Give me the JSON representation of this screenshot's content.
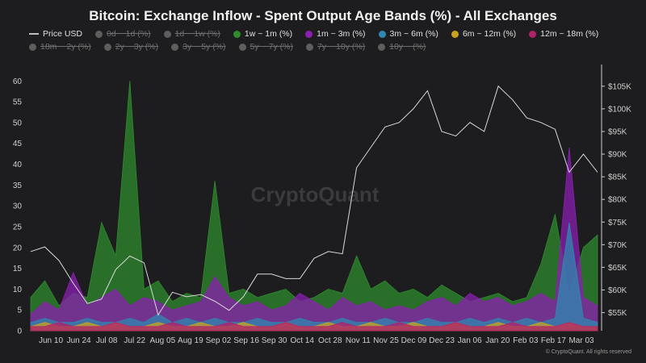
{
  "chart_data": {
    "type": "area",
    "title": "Bitcoin: Exchange Inflow - Spent Output Age Bands (%) - All Exchanges",
    "xlabel": "",
    "ylabel": "",
    "ylim": [
      0,
      62
    ],
    "y_ticks": [
      0,
      5,
      10,
      15,
      20,
      25,
      30,
      35,
      40,
      45,
      50,
      55,
      60
    ],
    "y2_ticks": [
      "$55K",
      "$60K",
      "$65K",
      "$70K",
      "$75K",
      "$80K",
      "$85K",
      "$90K",
      "$95K",
      "$100K",
      "$105K"
    ],
    "y2lim": [
      51000,
      108000
    ],
    "x_ticks": [
      "Jun 10",
      "Jun 24",
      "Jul 08",
      "Jul 22",
      "Aug 05",
      "Aug 19",
      "Sep 02",
      "Sep 16",
      "Sep 30",
      "Oct 14",
      "Oct 28",
      "Nov 11",
      "Nov 25",
      "Dec 09",
      "Dec 23",
      "Jan 06",
      "Jan 20",
      "Feb 03",
      "Feb 17",
      "Mar 03"
    ],
    "x": [
      "2024-06-03",
      "2024-06-10",
      "2024-06-17",
      "2024-06-24",
      "2024-07-01",
      "2024-07-08",
      "2024-07-15",
      "2024-07-22",
      "2024-07-29",
      "2024-08-05",
      "2024-08-12",
      "2024-08-19",
      "2024-08-26",
      "2024-09-02",
      "2024-09-09",
      "2024-09-16",
      "2024-09-23",
      "2024-09-30",
      "2024-10-07",
      "2024-10-14",
      "2024-10-21",
      "2024-10-28",
      "2024-11-04",
      "2024-11-11",
      "2024-11-18",
      "2024-11-25",
      "2024-12-02",
      "2024-12-09",
      "2024-12-16",
      "2024-12-23",
      "2024-12-30",
      "2025-01-06",
      "2025-01-13",
      "2025-01-20",
      "2025-01-27",
      "2025-02-03",
      "2025-02-10",
      "2025-02-17",
      "2025-02-24",
      "2025-03-03",
      "2025-03-08"
    ],
    "legend_placement": "top",
    "grid": false,
    "series": [
      {
        "name": "Price USD",
        "axis": "right",
        "style": "line",
        "color": "#d9d9d9",
        "active": true,
        "values": [
          68500,
          69500,
          66500,
          61500,
          57000,
          58000,
          64500,
          67500,
          66000,
          54500,
          59500,
          58500,
          59000,
          57500,
          55500,
          58500,
          63500,
          63500,
          62500,
          62500,
          67000,
          68500,
          68000,
          87000,
          91500,
          96000,
          97000,
          100000,
          104000,
          95000,
          94000,
          97000,
          95000,
          105000,
          102000,
          98000,
          97000,
          95500,
          86000,
          90000,
          86000
        ]
      },
      {
        "name": "0d ~ 1d (%)",
        "color": "#5e5e5e",
        "active": false
      },
      {
        "name": "1d ~ 1w (%)",
        "color": "#5e5e5e",
        "active": false
      },
      {
        "name": "1w ~ 1m (%)",
        "color": "#2e8b2e",
        "active": true,
        "values": [
          8,
          12,
          6,
          9,
          8,
          26,
          18,
          60,
          10,
          12,
          7,
          9,
          8,
          36,
          9,
          10,
          8,
          9,
          10,
          7,
          8,
          10,
          9,
          18,
          10,
          12,
          9,
          10,
          8,
          11,
          9,
          7,
          8,
          9,
          7,
          8,
          16,
          28,
          9,
          20,
          23
        ]
      },
      {
        "name": "1m ~ 3m (%)",
        "color": "#8a1fb0",
        "active": true,
        "values": [
          4,
          7,
          5,
          14,
          6,
          8,
          10,
          6,
          8,
          7,
          5,
          6,
          7,
          13,
          8,
          6,
          7,
          5,
          6,
          9,
          7,
          5,
          8,
          6,
          7,
          5,
          6,
          5,
          7,
          8,
          6,
          9,
          7,
          8,
          6,
          7,
          9,
          7,
          44,
          8,
          6
        ]
      },
      {
        "name": "3m ~ 6m (%)",
        "color": "#2f88b0",
        "active": true,
        "values": [
          2,
          3,
          2,
          2,
          3,
          2,
          2,
          3,
          2,
          4,
          2,
          3,
          2,
          3,
          2,
          2,
          3,
          2,
          2,
          3,
          2,
          2,
          3,
          2,
          2,
          3,
          2,
          2,
          3,
          2,
          2,
          3,
          2,
          3,
          2,
          3,
          2,
          3,
          26,
          3,
          2
        ]
      },
      {
        "name": "6m ~ 12m (%)",
        "color": "#c9a11f",
        "active": true,
        "values": [
          1,
          2,
          1,
          1,
          2,
          1,
          2,
          1,
          1,
          2,
          1,
          1,
          2,
          1,
          1,
          2,
          1,
          1,
          2,
          1,
          1,
          2,
          1,
          1,
          2,
          1,
          1,
          2,
          1,
          1,
          2,
          1,
          1,
          2,
          1,
          1,
          2,
          1,
          2,
          1,
          1
        ]
      },
      {
        "name": "12m ~ 18m (%)",
        "color": "#b3206a",
        "active": true,
        "values": [
          1,
          1,
          2,
          1,
          1,
          1,
          2,
          1,
          1,
          1,
          2,
          1,
          1,
          1,
          2,
          1,
          1,
          1,
          2,
          1,
          1,
          1,
          2,
          1,
          1,
          1,
          2,
          1,
          1,
          1,
          2,
          1,
          1,
          1,
          2,
          1,
          1,
          1,
          2,
          1,
          1
        ]
      },
      {
        "name": "18m ~ 2y (%)",
        "color": "#5e5e5e",
        "active": false
      },
      {
        "name": "2y ~ 3y (%)",
        "color": "#5e5e5e",
        "active": false
      },
      {
        "name": "3y ~ 5y (%)",
        "color": "#5e5e5e",
        "active": false
      },
      {
        "name": "5y ~ 7y (%)",
        "color": "#5e5e5e",
        "active": false
      },
      {
        "name": "7y ~ 10y (%)",
        "color": "#5e5e5e",
        "active": false
      },
      {
        "name": "10y ~ (%)",
        "color": "#5e5e5e",
        "active": false
      }
    ]
  },
  "watermark": "CryptoQuant",
  "credit": "© CryptoQuant. All rights reserved"
}
